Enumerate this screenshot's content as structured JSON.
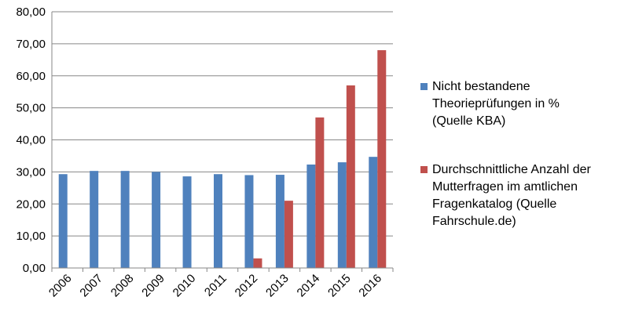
{
  "chart_data": {
    "type": "bar",
    "categories": [
      "2006",
      "2007",
      "2008",
      "2009",
      "2010",
      "2011",
      "2012",
      "2013",
      "2014",
      "2015",
      "2016"
    ],
    "series": [
      {
        "name": "Nicht bestandene Theorieprüfungen in % (Quelle KBA)",
        "legend_lines": [
          "Nicht bestandene",
          "Theorieprüfungen in %",
          "(Quelle KBA)"
        ],
        "color": "#4F81BD",
        "values": [
          29.3,
          30.3,
          30.3,
          30.0,
          28.6,
          29.3,
          29.0,
          29.1,
          32.3,
          33.0,
          34.7
        ]
      },
      {
        "name": "Durchschnittliche Anzahl der Mutterfragen im amtlichen Fragenkatalog (Quelle Fahrschule.de)",
        "legend_lines": [
          "Durchschnittliche Anzahl der",
          "Mutterfragen im amtlichen",
          "Fragenkatalog (Quelle",
          "Fahrschule.de)"
        ],
        "color": "#C0504D",
        "values": [
          null,
          null,
          null,
          null,
          null,
          null,
          3.0,
          21.0,
          47.0,
          57.0,
          68.0
        ]
      }
    ],
    "ylim": [
      0,
      80
    ],
    "yticks": [
      "0,00",
      "10,00",
      "20,00",
      "30,00",
      "40,00",
      "50,00",
      "60,00",
      "70,00",
      "80,00"
    ],
    "grid": true,
    "legend_position": "right"
  }
}
